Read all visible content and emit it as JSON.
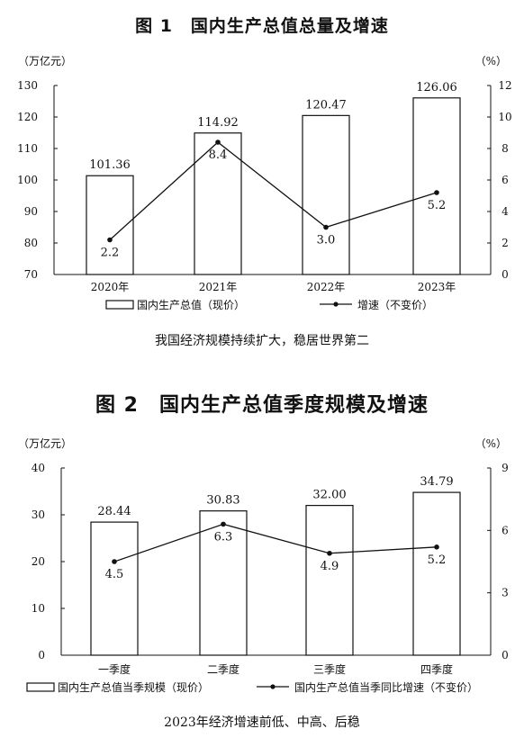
{
  "chart_data": [
    {
      "type": "bar",
      "title": "图 1　国内生产总值总量及增速",
      "caption": "我国经济规模持续扩大，稳居世界第二",
      "y_unit": "（万亿元）",
      "y2_unit": "（%）",
      "categories": [
        "2020年",
        "2021年",
        "2022年",
        "2023年"
      ],
      "series": [
        {
          "name": "国内生产总值（现价）",
          "kind": "bar",
          "axis": "left",
          "values": [
            101.36,
            114.92,
            120.47,
            126.06
          ],
          "labels": [
            "101.36",
            "114.92",
            "120.47",
            "126.06"
          ]
        },
        {
          "name": "增速（不变价）",
          "kind": "line",
          "axis": "right",
          "values": [
            2.2,
            8.4,
            3.0,
            5.2
          ],
          "labels": [
            "2.2",
            "8.4",
            "3.0",
            "5.2"
          ]
        }
      ],
      "ylim": [
        70,
        130
      ],
      "yticks": [
        70,
        80,
        90,
        100,
        110,
        120,
        130
      ],
      "y2lim": [
        0,
        12
      ],
      "y2ticks": [
        0,
        2,
        4,
        6,
        8,
        10,
        12
      ],
      "grid": false,
      "legend": "bottom"
    },
    {
      "type": "bar",
      "title": "图 2　国内生产总值季度规模及增速",
      "caption": "2023年经济增速前低、中高、后稳",
      "y_unit": "（万亿元）",
      "y2_unit": "（%）",
      "categories": [
        "一季度",
        "二季度",
        "三季度",
        "四季度"
      ],
      "series": [
        {
          "name": "国内生产总值当季规模（现价）",
          "kind": "bar",
          "axis": "left",
          "values": [
            28.44,
            30.83,
            32.0,
            34.79
          ],
          "labels": [
            "28.44",
            "30.83",
            "32.00",
            "34.79"
          ]
        },
        {
          "name": "国内生产总值当季同比增速（不变价）",
          "kind": "line",
          "axis": "right",
          "values": [
            4.5,
            6.3,
            4.9,
            5.2
          ],
          "labels": [
            "4.5",
            "6.3",
            "4.9",
            "5.2"
          ]
        }
      ],
      "ylim": [
        0,
        40
      ],
      "yticks": [
        0,
        10,
        20,
        30,
        40
      ],
      "y2lim": [
        0,
        9
      ],
      "y2ticks": [
        0,
        3,
        6,
        9
      ],
      "grid": false,
      "legend": "bottom"
    }
  ]
}
